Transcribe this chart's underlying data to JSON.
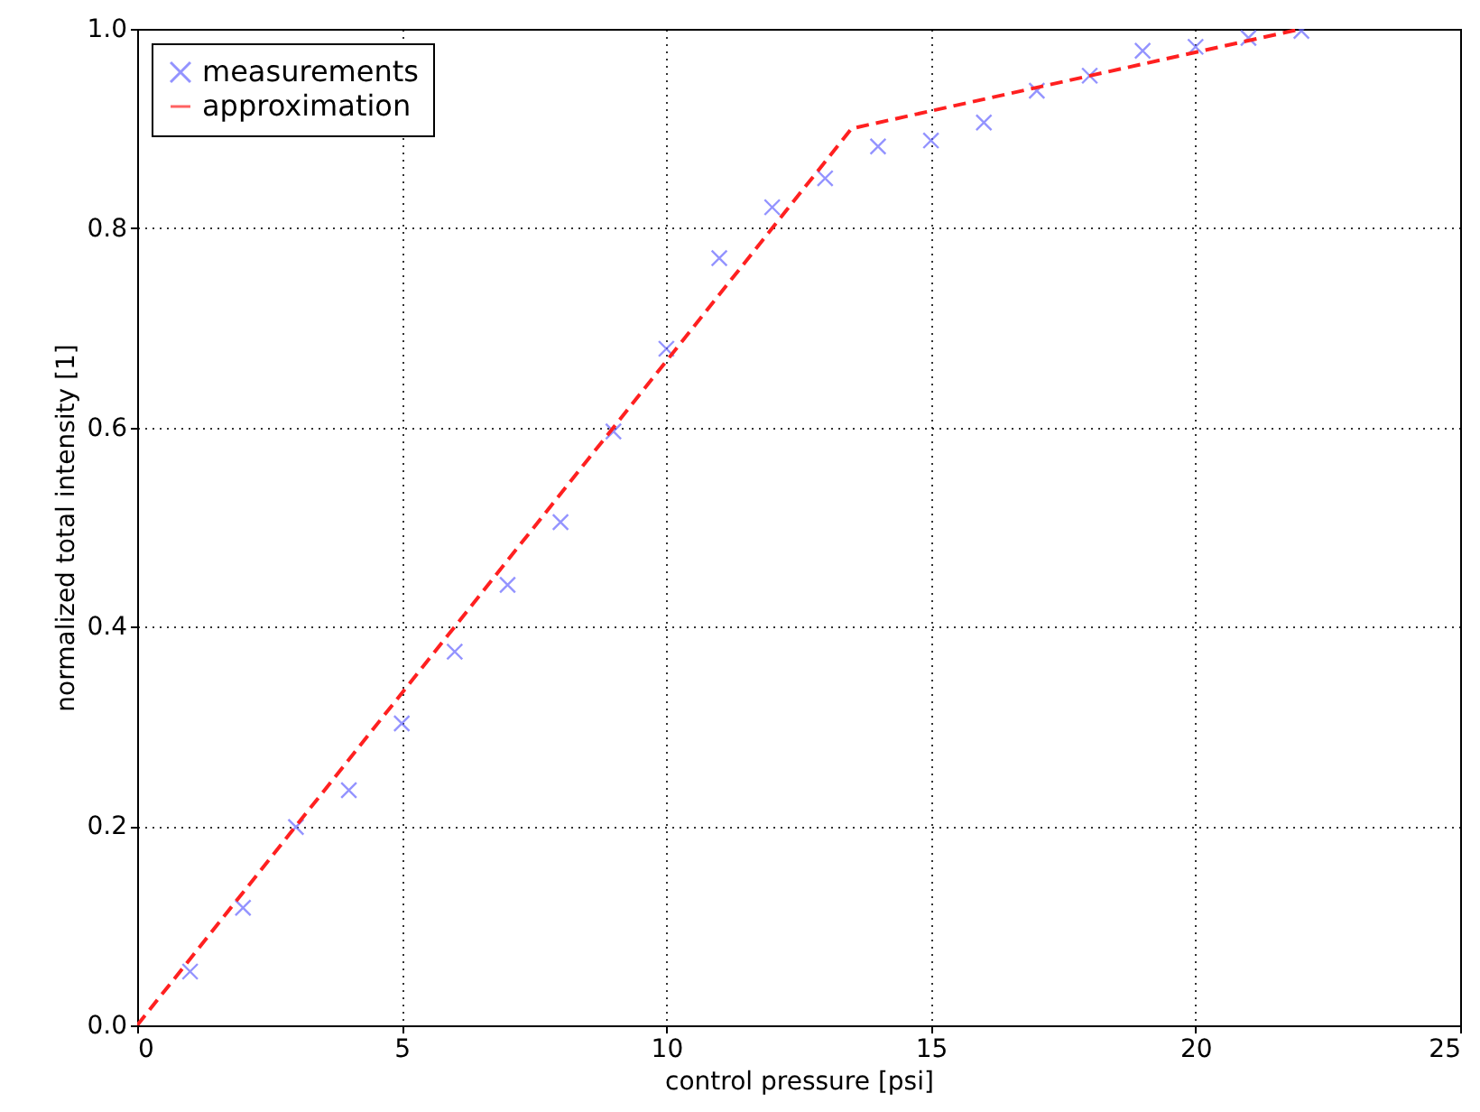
{
  "chart_data": {
    "type": "scatter",
    "xlabel": "control pressure [psi]",
    "ylabel": "normalized total intensity [1]",
    "xlim": [
      0,
      25
    ],
    "xticks": [
      0,
      5,
      10,
      15,
      20,
      25
    ],
    "ylim": [
      0,
      1
    ],
    "yticks": [
      {
        "value": 0,
        "label": "0.0"
      },
      {
        "value": 0.2,
        "label": "0.2"
      },
      {
        "value": 0.4,
        "label": "0.4"
      },
      {
        "value": 0.6,
        "label": "0.6"
      },
      {
        "value": 0.8,
        "label": "0.8"
      },
      {
        "value": 1,
        "label": "1.0"
      }
    ],
    "grid": true,
    "legend": "top left",
    "series": [
      {
        "name": "measurements",
        "marker": "cross",
        "color": "#6666ff",
        "x": [
          1,
          2,
          3,
          4,
          5,
          6,
          7,
          8,
          9,
          10,
          11,
          12,
          13,
          14,
          15,
          16,
          17,
          18,
          19,
          20,
          21,
          22
        ],
        "values": [
          0.054,
          0.118,
          0.199,
          0.236,
          0.303,
          0.375,
          0.442,
          0.505,
          0.596,
          0.679,
          0.77,
          0.821,
          0.85,
          0.882,
          0.888,
          0.906,
          0.938,
          0.953,
          0.978,
          0.982,
          0.991,
          0.998
        ]
      },
      {
        "name": "approximation",
        "type": "line",
        "line_style": "dashed",
        "marker": "none",
        "color": "#ff2020",
        "x": [
          0,
          13.5,
          22
        ],
        "values": [
          0,
          0.9,
          1.0
        ]
      }
    ]
  }
}
